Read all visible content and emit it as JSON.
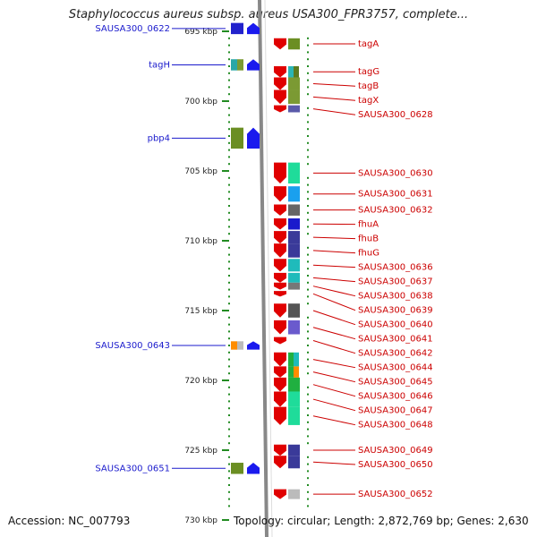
{
  "title": "Staphylococcus aureus subsp. aureus USA300_FPR3757, complete...",
  "footer": {
    "accession": "Accession: NC_007793",
    "topology": "Topology: circular; Length: 2,872,769 bp; Genes: 2,630"
  },
  "axis": {
    "unit": "kbp",
    "range": [
      693.5,
      730.5
    ],
    "ticks": [
      {
        "value": 695,
        "label": "695 kbp"
      },
      {
        "value": 700,
        "label": "700 kbp"
      },
      {
        "value": 705,
        "label": "705 kbp"
      },
      {
        "value": 710,
        "label": "710 kbp"
      },
      {
        "value": 715,
        "label": "715 kbp"
      },
      {
        "value": 720,
        "label": "720 kbp"
      },
      {
        "value": 725,
        "label": "725 kbp"
      },
      {
        "value": 730,
        "label": "730 kbp"
      }
    ]
  },
  "colors": {
    "forward_gene": "#e00000",
    "reverse_gene": "#1a1aee",
    "right_label": "#cc0000",
    "left_label": "#1a1acc",
    "backbone": "#888888",
    "tick": "#228b22"
  },
  "genes_left": [
    {
      "name": "SAUSA300_0622",
      "start": 694.4,
      "end": 695.2,
      "tracks": [
        "#2222cc"
      ]
    },
    {
      "name": "tagH",
      "start": 697.0,
      "end": 697.8,
      "tracks": [
        "#2aa7a7",
        "#7b9a33"
      ]
    },
    {
      "name": "pbp4",
      "start": 701.9,
      "end": 703.4,
      "tracks": [
        "#6b8e23"
      ]
    },
    {
      "name": "SAUSA300_0643",
      "start": 717.2,
      "end": 717.8,
      "tracks": [
        "#ff8c00",
        "#bbbbbb"
      ]
    },
    {
      "name": "SAUSA300_0651",
      "start": 725.9,
      "end": 726.7,
      "tracks": [
        "#6b8e23"
      ]
    }
  ],
  "genes_right": [
    {
      "name": "tagA",
      "start": 695.5,
      "end": 696.3,
      "tracks": [
        "#6b8e23"
      ]
    },
    {
      "name": "tagG",
      "start": 697.5,
      "end": 698.3,
      "tracks": [
        "#2bb5b5",
        "#5c7a1f"
      ]
    },
    {
      "name": "tagB",
      "start": 698.3,
      "end": 699.2,
      "tracks": [
        "#7b9a33"
      ]
    },
    {
      "name": "tagX",
      "start": 699.2,
      "end": 700.2,
      "tracks": [
        "#7b9a33"
      ]
    },
    {
      "name": "SAUSA300_0628",
      "start": 700.3,
      "end": 700.8,
      "tracks": [
        "#5a5aaa"
      ]
    },
    {
      "name": "SAUSA300_0630",
      "start": 704.4,
      "end": 705.9,
      "tracks": [
        "#1fdc9a"
      ]
    },
    {
      "name": "SAUSA300_0631",
      "start": 706.1,
      "end": 707.2,
      "tracks": [
        "#1aa0ee"
      ]
    },
    {
      "name": "SAUSA300_0632",
      "start": 707.4,
      "end": 708.2,
      "tracks": [
        "#666666"
      ]
    },
    {
      "name": "fhuA",
      "start": 708.4,
      "end": 709.2,
      "tracks": [
        "#1a1acc"
      ]
    },
    {
      "name": "fhuB",
      "start": 709.3,
      "end": 710.2,
      "tracks": [
        "#3a3a99"
      ]
    },
    {
      "name": "fhuG",
      "start": 710.2,
      "end": 711.2,
      "tracks": [
        "#3a3a99"
      ]
    },
    {
      "name": "SAUSA300_0636",
      "start": 711.3,
      "end": 712.2,
      "tracks": [
        "#1fbbbb"
      ]
    },
    {
      "name": "SAUSA300_0637",
      "start": 712.3,
      "end": 713.0,
      "tracks": [
        "#1fbbbb"
      ]
    },
    {
      "name": "SAUSA300_0638",
      "start": 713.0,
      "end": 713.5,
      "tracks": [
        "#777777"
      ]
    },
    {
      "name": "SAUSA300_0639",
      "start": 713.6,
      "end": 714.0,
      "tracks": []
    },
    {
      "name": "SAUSA300_0640",
      "start": 714.5,
      "end": 715.5,
      "tracks": [
        "#555555"
      ]
    },
    {
      "name": "SAUSA300_0641",
      "start": 715.7,
      "end": 716.7,
      "tracks": [
        "#6a5acd"
      ]
    },
    {
      "name": "SAUSA300_0642",
      "start": 716.9,
      "end": 717.4,
      "tracks": []
    },
    {
      "name": "SAUSA300_0644",
      "start": 718.0,
      "end": 719.0,
      "tracks": [
        "#20b040",
        "#1fbbbb"
      ]
    },
    {
      "name": "SAUSA300_0645",
      "start": 719.0,
      "end": 719.8,
      "tracks": [
        "#20b040",
        "#ff8c00"
      ]
    },
    {
      "name": "SAUSA300_0646",
      "start": 719.8,
      "end": 720.8,
      "tracks": [
        "#20b040"
      ]
    },
    {
      "name": "SAUSA300_0647",
      "start": 720.8,
      "end": 721.9,
      "tracks": [
        "#1fdc9a"
      ]
    },
    {
      "name": "SAUSA300_0648",
      "start": 721.9,
      "end": 723.2,
      "tracks": [
        "#1fdc9a"
      ]
    },
    {
      "name": "SAUSA300_0649",
      "start": 724.6,
      "end": 725.4,
      "tracks": [
        "#3a3a99"
      ]
    },
    {
      "name": "SAUSA300_0650",
      "start": 725.4,
      "end": 726.3,
      "tracks": [
        "#3a3a99"
      ]
    },
    {
      "name": "SAUSA300_0652",
      "start": 727.8,
      "end": 728.5,
      "tracks": [
        "#bbbbbb"
      ]
    }
  ]
}
